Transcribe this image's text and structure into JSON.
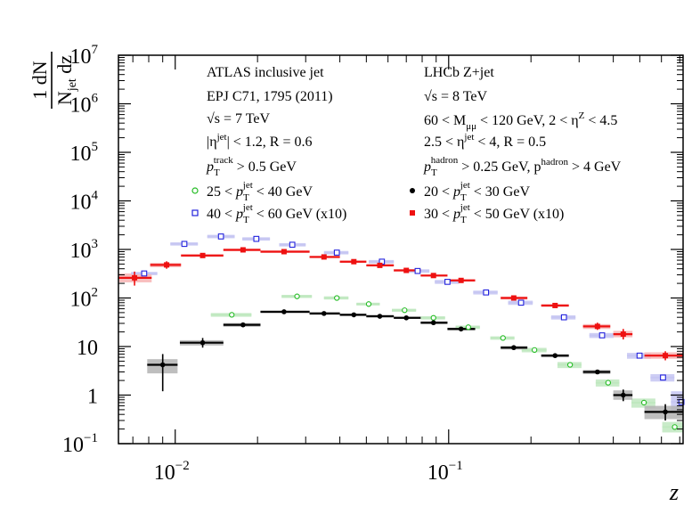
{
  "chart_data": {
    "type": "scatter",
    "x_scale": "log",
    "y_scale": "log",
    "xlim": [
      0.0062,
      0.72
    ],
    "ylim": [
      0.1,
      10000000
    ],
    "xlabel": "z",
    "ylabel": {
      "num": "1 dN",
      "den_main": "N",
      "den_sub": "jet",
      "den_tail": " dz"
    },
    "x_ticks": [
      {
        "base": "10",
        "exp": "−2",
        "value": 0.01
      },
      {
        "base": "10",
        "exp": "−1",
        "value": 0.1
      }
    ],
    "y_ticks": [
      {
        "value": 0.1,
        "base": "10",
        "exp": "−1"
      },
      {
        "value": 1,
        "base": "1",
        "exp": ""
      },
      {
        "value": 10,
        "base": "10",
        "exp": ""
      },
      {
        "value": 100,
        "base": "10",
        "exp": "2"
      },
      {
        "value": 1000,
        "base": "10",
        "exp": "3"
      },
      {
        "value": 10000,
        "base": "10",
        "exp": "4"
      },
      {
        "value": 100000,
        "base": "10",
        "exp": "5"
      },
      {
        "value": 1000000,
        "base": "10",
        "exp": "6"
      },
      {
        "value": 10000000,
        "base": "10",
        "exp": "7"
      }
    ],
    "annotations_left": {
      "line1": "ATLAS inclusive jet",
      "line2": "EPJ C71, 1795 (2011)",
      "sqrt": "√s",
      "energy": " = 7 TeV",
      "eta": "|η",
      "eta_sup": "jet",
      "eta_rest": "| < 1.2, R = 0.6",
      "pt_track_p": "p",
      "pt_track_sub": "T",
      "pt_track_sup": "track",
      "pt_track_rest": " > 0.5 GeV"
    },
    "annotations_right": {
      "line1": "LHCb Z+jet",
      "sqrt": "√s",
      "energy": " = 8 TeV",
      "mass_pre": "60 < M",
      "mass_sub": "μμ",
      "mass_rest": " < 120 GeV, 2 < η",
      "mass_sup": "Z",
      "mass_tail": " < 4.5",
      "eta_pre": "2.5 < η",
      "eta_sup": "jet",
      "eta_rest": " < 4, R = 0.5",
      "had_p": "p",
      "had_sub": "T",
      "had_sup": "hadron",
      "had_mid": " > 0.25 GeV, p",
      "had_sup2": "hadron",
      "had_tail": " > 4 GeV"
    },
    "series": [
      {
        "name": "ATLAS 25 < pT jet < 40 GeV",
        "legend_pre": "25 < ",
        "legend_post": " < 40 GeV",
        "color": "#22bb22",
        "marker": "open-circle",
        "points": [
          {
            "x": 0.0161,
            "y": 45,
            "xlo": 0.0135,
            "xhi": 0.019,
            "sys_lo": 41,
            "sys_hi": 49
          },
          {
            "x": 0.0279,
            "y": 108,
            "xlo": 0.0245,
            "xhi": 0.0316,
            "sys_lo": 100,
            "sys_hi": 116
          },
          {
            "x": 0.039,
            "y": 100,
            "xlo": 0.035,
            "xhi": 0.043,
            "sys_lo": 93,
            "sys_hi": 108
          },
          {
            "x": 0.051,
            "y": 75,
            "xlo": 0.046,
            "xhi": 0.056,
            "sys_lo": 70,
            "sys_hi": 80
          },
          {
            "x": 0.069,
            "y": 56,
            "xlo": 0.062,
            "xhi": 0.076,
            "sys_lo": 52,
            "sys_hi": 60
          },
          {
            "x": 0.088,
            "y": 39,
            "xlo": 0.079,
            "xhi": 0.097,
            "sys_lo": 36,
            "sys_hi": 42
          },
          {
            "x": 0.118,
            "y": 25,
            "xlo": 0.106,
            "xhi": 0.13,
            "sys_lo": 23,
            "sys_hi": 27
          },
          {
            "x": 0.158,
            "y": 15,
            "xlo": 0.142,
            "xhi": 0.174,
            "sys_lo": 13.8,
            "sys_hi": 16.2
          },
          {
            "x": 0.206,
            "y": 8.5,
            "xlo": 0.185,
            "xhi": 0.228,
            "sys_lo": 7.6,
            "sys_hi": 9.4
          },
          {
            "x": 0.278,
            "y": 4.2,
            "xlo": 0.25,
            "xhi": 0.306,
            "sys_lo": 3.6,
            "sys_hi": 4.8
          },
          {
            "x": 0.383,
            "y": 1.8,
            "xlo": 0.345,
            "xhi": 0.421,
            "sys_lo": 1.5,
            "sys_hi": 2.1
          },
          {
            "x": 0.518,
            "y": 0.7,
            "xlo": 0.466,
            "xhi": 0.57,
            "sys_lo": 0.55,
            "sys_hi": 0.85
          },
          {
            "x": 0.671,
            "y": 0.22,
            "xlo": 0.604,
            "xhi": 0.72,
            "sys_lo": 0.17,
            "sys_hi": 0.28
          }
        ]
      },
      {
        "name": "ATLAS 40 < pT jet < 60 GeV (x10)",
        "legend_pre": "40 < ",
        "legend_post": " < 60 GeV (x10)",
        "color": "#2222dd",
        "marker": "open-square",
        "points": [
          {
            "x": 0.0077,
            "y": 320,
            "xlo": 0.0069,
            "xhi": 0.0086,
            "sys_lo": 295,
            "sys_hi": 345
          },
          {
            "x": 0.0108,
            "y": 1300,
            "xlo": 0.0096,
            "xhi": 0.0121,
            "sys_lo": 1200,
            "sys_hi": 1400
          },
          {
            "x": 0.0147,
            "y": 1850,
            "xlo": 0.0131,
            "xhi": 0.0165,
            "sys_lo": 1700,
            "sys_hi": 2000
          },
          {
            "x": 0.0198,
            "y": 1650,
            "xlo": 0.0176,
            "xhi": 0.0222,
            "sys_lo": 1520,
            "sys_hi": 1780
          },
          {
            "x": 0.0268,
            "y": 1250,
            "xlo": 0.024,
            "xhi": 0.03,
            "sys_lo": 1150,
            "sys_hi": 1350
          },
          {
            "x": 0.039,
            "y": 860,
            "xlo": 0.035,
            "xhi": 0.043,
            "sys_lo": 790,
            "sys_hi": 930
          },
          {
            "x": 0.057,
            "y": 560,
            "xlo": 0.051,
            "xhi": 0.063,
            "sys_lo": 515,
            "sys_hi": 605
          },
          {
            "x": 0.077,
            "y": 360,
            "xlo": 0.069,
            "xhi": 0.085,
            "sys_lo": 330,
            "sys_hi": 390
          },
          {
            "x": 0.099,
            "y": 215,
            "xlo": 0.089,
            "xhi": 0.109,
            "sys_lo": 195,
            "sys_hi": 235
          },
          {
            "x": 0.137,
            "y": 130,
            "xlo": 0.123,
            "xhi": 0.151,
            "sys_lo": 118,
            "sys_hi": 142
          },
          {
            "x": 0.184,
            "y": 80,
            "xlo": 0.165,
            "xhi": 0.203,
            "sys_lo": 72,
            "sys_hi": 88
          },
          {
            "x": 0.264,
            "y": 40,
            "xlo": 0.237,
            "xhi": 0.291,
            "sys_lo": 36,
            "sys_hi": 44
          },
          {
            "x": 0.364,
            "y": 17,
            "xlo": 0.327,
            "xhi": 0.401,
            "sys_lo": 15,
            "sys_hi": 19
          },
          {
            "x": 0.499,
            "y": 6.5,
            "xlo": 0.449,
            "xhi": 0.549,
            "sys_lo": 5.6,
            "sys_hi": 7.4
          },
          {
            "x": 0.608,
            "y": 2.3,
            "xlo": 0.547,
            "xhi": 0.669,
            "sys_lo": 1.9,
            "sys_hi": 2.7
          },
          {
            "x": 0.71,
            "y": 0.72,
            "xlo": 0.65,
            "xhi": 0.72,
            "sys_lo": 0.45,
            "sys_hi": 1.2
          }
        ]
      },
      {
        "name": "LHCb 20 < pT jet < 30 GeV",
        "legend_pre": "20 < ",
        "legend_post": " < 30 GeV",
        "color": "#000000",
        "marker": "filled-circle",
        "points": [
          {
            "x": 0.009,
            "y": 4.2,
            "xlo": 0.0079,
            "xhi": 0.0102,
            "elo": 1.2,
            "ehi": 7.0,
            "sys_lo": 2.8,
            "sys_hi": 5.5
          },
          {
            "x": 0.0126,
            "y": 12,
            "xlo": 0.0104,
            "xhi": 0.015,
            "elo": 9.5,
            "ehi": 15,
            "sys_lo": 10.5,
            "sys_hi": 13.5
          },
          {
            "x": 0.0177,
            "y": 28,
            "xlo": 0.015,
            "xhi": 0.0205,
            "elo": 25,
            "ehi": 31,
            "sys_lo": 25.5,
            "sys_hi": 30.5
          },
          {
            "x": 0.025,
            "y": 52,
            "xlo": 0.0205,
            "xhi": 0.031,
            "sys_lo": 49,
            "sys_hi": 55
          },
          {
            "x": 0.035,
            "y": 48,
            "xlo": 0.031,
            "xhi": 0.04,
            "sys_lo": 45,
            "sys_hi": 51
          },
          {
            "x": 0.045,
            "y": 45,
            "xlo": 0.04,
            "xhi": 0.05,
            "sys_lo": 42.5,
            "sys_hi": 47.5
          },
          {
            "x": 0.056,
            "y": 42,
            "xlo": 0.05,
            "xhi": 0.063,
            "sys_lo": 39.5,
            "sys_hi": 44.5
          },
          {
            "x": 0.07,
            "y": 39,
            "xlo": 0.063,
            "xhi": 0.079,
            "sys_lo": 37,
            "sys_hi": 41
          },
          {
            "x": 0.088,
            "y": 31,
            "xlo": 0.079,
            "xhi": 0.099,
            "sys_lo": 29,
            "sys_hi": 33
          },
          {
            "x": 0.111,
            "y": 23,
            "xlo": 0.099,
            "xhi": 0.125,
            "sys_lo": 21.5,
            "sys_hi": 24.5
          },
          {
            "x": 0.173,
            "y": 9.5,
            "xlo": 0.155,
            "xhi": 0.194,
            "sys_lo": 8.7,
            "sys_hi": 10.3
          },
          {
            "x": 0.245,
            "y": 6.5,
            "xlo": 0.218,
            "xhi": 0.275,
            "sys_lo": 6,
            "sys_hi": 7
          },
          {
            "x": 0.35,
            "y": 3.0,
            "xlo": 0.31,
            "xhi": 0.39,
            "sys_lo": 2.7,
            "sys_hi": 3.3
          },
          {
            "x": 0.435,
            "y": 1.0,
            "xlo": 0.4,
            "xhi": 0.47,
            "elo": 0.75,
            "ehi": 1.3,
            "sys_lo": 0.8,
            "sys_hi": 1.25
          },
          {
            "x": 0.62,
            "y": 0.45,
            "xlo": 0.52,
            "xhi": 0.72,
            "elo": 0.3,
            "ehi": 0.65,
            "sys_lo": 0.32,
            "sys_hi": 0.6
          }
        ]
      },
      {
        "name": "LHCb 30 < pT jet < 50 GeV (x10)",
        "legend_pre": "30 < ",
        "legend_post": " < 50 GeV (x10)",
        "color": "#ee1111",
        "marker": "filled-square",
        "points": [
          {
            "x": 0.0071,
            "y": 260,
            "xlo": 0.0062,
            "xhi": 0.0082,
            "elo": 180,
            "ehi": 350,
            "sys_lo": 210,
            "sys_hi": 320
          },
          {
            "x": 0.0093,
            "y": 480,
            "xlo": 0.0081,
            "xhi": 0.0105,
            "elo": 400,
            "ehi": 570,
            "sys_lo": 430,
            "sys_hi": 530
          },
          {
            "x": 0.0126,
            "y": 750,
            "xlo": 0.0105,
            "xhi": 0.015,
            "sys_lo": 700,
            "sys_hi": 800
          },
          {
            "x": 0.0177,
            "y": 980,
            "xlo": 0.015,
            "xhi": 0.0205,
            "sys_lo": 920,
            "sys_hi": 1040
          },
          {
            "x": 0.025,
            "y": 900,
            "xlo": 0.0205,
            "xhi": 0.031,
            "sys_lo": 850,
            "sys_hi": 950
          },
          {
            "x": 0.035,
            "y": 700,
            "xlo": 0.031,
            "xhi": 0.04,
            "sys_lo": 660,
            "sys_hi": 740
          },
          {
            "x": 0.045,
            "y": 560,
            "xlo": 0.04,
            "xhi": 0.05,
            "sys_lo": 530,
            "sys_hi": 590
          },
          {
            "x": 0.056,
            "y": 470,
            "xlo": 0.05,
            "xhi": 0.063,
            "sys_lo": 445,
            "sys_hi": 495
          },
          {
            "x": 0.07,
            "y": 370,
            "xlo": 0.063,
            "xhi": 0.079,
            "sys_lo": 350,
            "sys_hi": 390
          },
          {
            "x": 0.088,
            "y": 290,
            "xlo": 0.079,
            "xhi": 0.099,
            "sys_lo": 275,
            "sys_hi": 305
          },
          {
            "x": 0.111,
            "y": 230,
            "xlo": 0.099,
            "xhi": 0.125,
            "sys_lo": 217,
            "sys_hi": 243
          },
          {
            "x": 0.173,
            "y": 100,
            "xlo": 0.155,
            "xhi": 0.194,
            "sys_lo": 93,
            "sys_hi": 107
          },
          {
            "x": 0.245,
            "y": 70,
            "xlo": 0.218,
            "xhi": 0.275,
            "sys_lo": 65,
            "sys_hi": 75
          },
          {
            "x": 0.35,
            "y": 26,
            "xlo": 0.31,
            "xhi": 0.39,
            "elo": 22,
            "ehi": 31,
            "sys_lo": 23,
            "sys_hi": 29
          },
          {
            "x": 0.435,
            "y": 18,
            "xlo": 0.4,
            "xhi": 0.47,
            "elo": 14,
            "ehi": 23,
            "sys_lo": 15.5,
            "sys_hi": 21
          },
          {
            "x": 0.62,
            "y": 6.5,
            "xlo": 0.52,
            "xhi": 0.72,
            "elo": 5.2,
            "ehi": 8,
            "sys_lo": 5.6,
            "sys_hi": 7.6
          }
        ]
      }
    ]
  }
}
